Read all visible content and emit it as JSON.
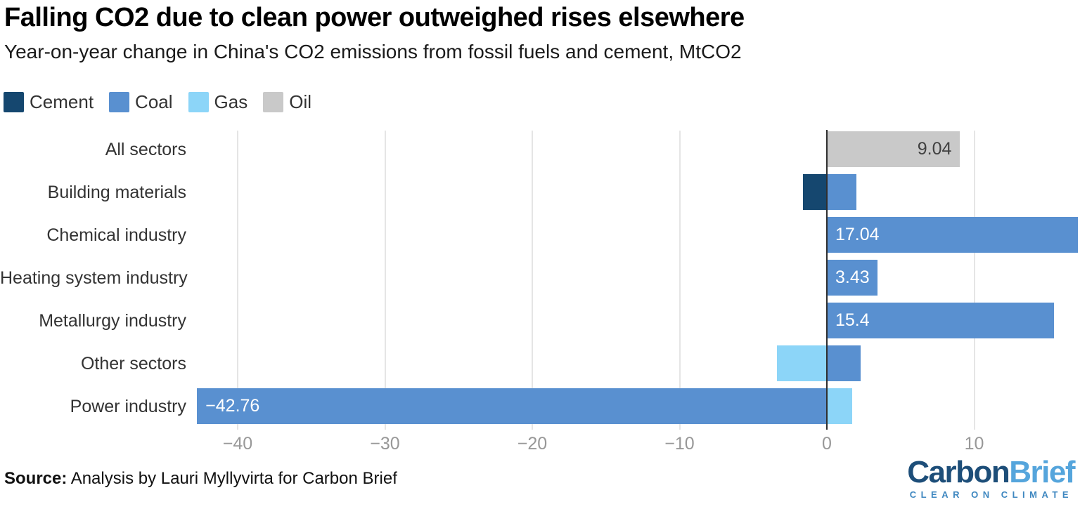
{
  "title": "Falling CO2 due to clean power outweighed rises elsewhere",
  "subtitle": "Year-on-year change in China's CO2 emissions from fossil fuels and cement, MtCO2",
  "legend": {
    "items": [
      {
        "label": "Cement",
        "color": "#15476f"
      },
      {
        "label": "Coal",
        "color": "#5990d0"
      },
      {
        "label": "Gas",
        "color": "#8cd5f8"
      },
      {
        "label": "Oil",
        "color": "#c9c9c9"
      }
    ]
  },
  "chart_data": {
    "type": "bar",
    "orientation": "horizontal",
    "unit": "MtCO2",
    "title": "Falling CO2 due to clean power outweighed rises elsewhere",
    "xlabel": "",
    "ylabel": "",
    "x_axis": {
      "ticks": [
        -40,
        -30,
        -20,
        -10,
        0,
        10
      ],
      "range": [
        -43,
        17.2
      ],
      "gridlines": true
    },
    "series_colors": {
      "Cement": "#15476f",
      "Coal": "#5990d0",
      "Gas": "#8cd5f8",
      "Oil": "#c9c9c9"
    },
    "rows": [
      {
        "category": "All sectors",
        "segments": [
          {
            "series": "Oil",
            "value": 9.04,
            "label": "9.04",
            "label_pos": "inside-end",
            "label_color": "#404040"
          }
        ]
      },
      {
        "category": "Building materials",
        "segments": [
          {
            "series": "Cement",
            "value": -1.6
          },
          {
            "series": "Coal",
            "value": 2.0
          }
        ]
      },
      {
        "category": "Chemical industry",
        "segments": [
          {
            "series": "Coal",
            "value": 17.04,
            "label": "17.04",
            "label_pos": "inside-start",
            "label_color": "#ffffff"
          }
        ]
      },
      {
        "category": "Heating system industry",
        "segments": [
          {
            "series": "Coal",
            "value": 3.43,
            "label": "3.43",
            "label_pos": "inside-start",
            "label_color": "#ffffff"
          }
        ]
      },
      {
        "category": "Metallurgy industry",
        "segments": [
          {
            "series": "Coal",
            "value": 15.4,
            "label": "15.4",
            "label_pos": "inside-start",
            "label_color": "#ffffff"
          }
        ]
      },
      {
        "category": "Other sectors",
        "segments": [
          {
            "series": "Gas",
            "value": -3.4
          },
          {
            "series": "Coal",
            "value": 2.3
          }
        ]
      },
      {
        "category": "Power industry",
        "segments": [
          {
            "series": "Coal",
            "value": -42.76,
            "label": "−42.76",
            "label_pos": "inside-start",
            "label_color": "#ffffff"
          },
          {
            "series": "Gas",
            "value": 1.7
          }
        ]
      }
    ]
  },
  "source": {
    "prefix": "Source:",
    "text": "Analysis by Lauri Myllyvirta for Carbon Brief"
  },
  "logo": {
    "part1": "Carbon",
    "part2": "Brief",
    "tagline": "CLEAR ON CLIMATE",
    "color1": "#1d4e79",
    "color2": "#55a5dc",
    "tagline_color": "#3e87c0"
  }
}
